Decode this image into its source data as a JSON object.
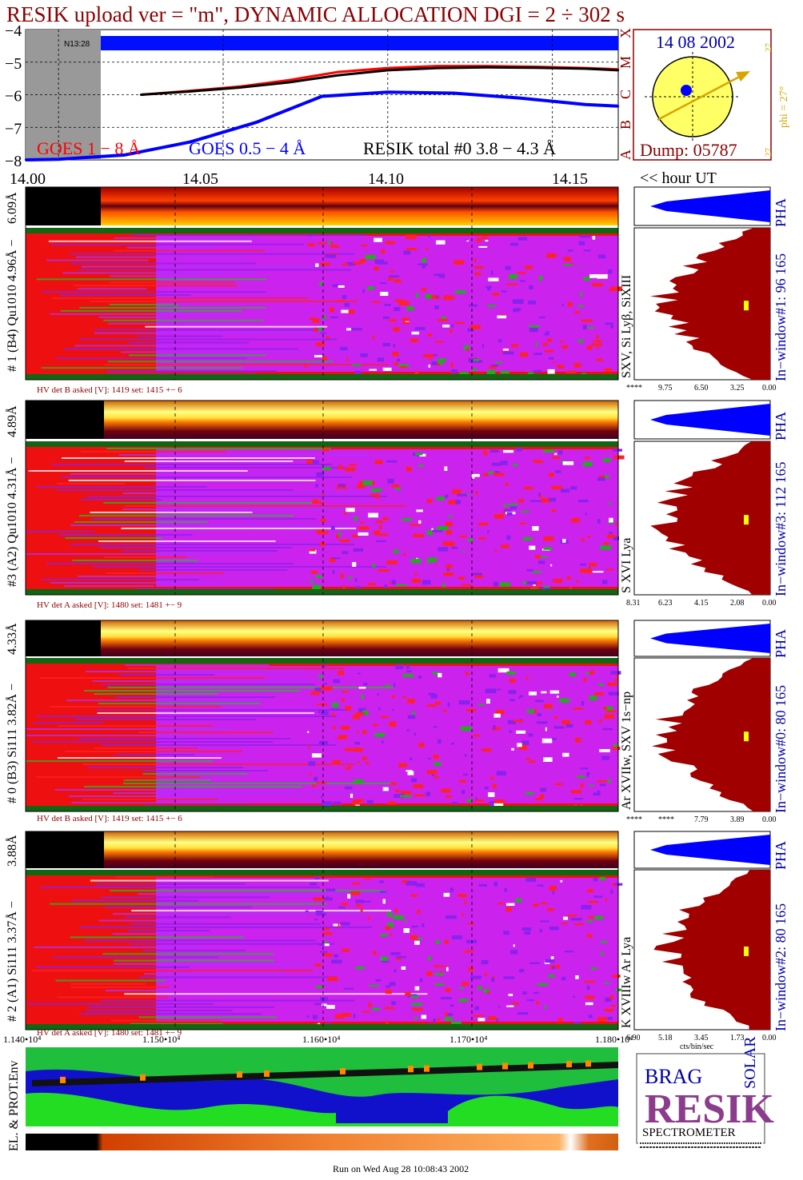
{
  "header": {
    "title": "RESIK upload ver = \"m\", DYNAMIC ALLOCATION  DGI =   2 ÷ 302 s"
  },
  "colors": {
    "title": "#8b0000",
    "goes_1_8": "#ff0000",
    "goes_05_4": "#0000ff",
    "resik_total": "#000000",
    "sun_disk": "#ffff66",
    "sun_vector": "#d9a400",
    "pha_blue": "#0000ff",
    "pha_red": "#a00000",
    "env_blue": "#0000ff",
    "env_green": "#22dd22"
  },
  "lightcurve_panel": {
    "y_ticks": [
      "−4",
      "−5",
      "−6",
      "−7",
      "−8"
    ],
    "goes_classes": [
      "X",
      "M",
      "C",
      "B",
      "A"
    ],
    "nmark_label": "N13:28",
    "legend": {
      "goes_1_8": "GOES 1 − 8 Å",
      "goes_05_4": "GOES 0.5 − 4 Å",
      "resik_total": "RESIK total #0  3.8 − 4.3 Å"
    },
    "time_ticks": [
      "14.00",
      "14.05",
      "14.10",
      "14.15"
    ],
    "time_unit": "<< hour UT"
  },
  "sun_panel": {
    "date": "14 08 2002",
    "phi_label": "phi = 27°",
    "phi_top": "27",
    "phi_bottom": "27",
    "dump": "Dump: 05787"
  },
  "detectors": [
    {
      "id": "det1",
      "strip_label": "6.09Å",
      "main_label": "# 1 (B4) Qu1010 4.96Å −",
      "line_label": "SXV, Si Lyβ, SiXIII",
      "hv": "HV det B asked [V]:  1419 set:  1415 +−   6",
      "window": "In−window#1:   96 165",
      "pha": "PHA",
      "x_ticks": [
        "****",
        "9.75",
        "6.50",
        "3.25",
        "0.00"
      ]
    },
    {
      "id": "det3",
      "strip_label": "4.89Å",
      "main_label": "#3 (A2) Qu1010  4.31Å −",
      "line_label": "S XVI Lya",
      "hv": "HV det A asked [V]:  1480 set:  1481 +−    9",
      "window": "In−window#3:  112 165",
      "pha": "PHA",
      "x_ticks": [
        "8.31",
        "6.23",
        "4.15",
        "2.08",
        "0.00"
      ]
    },
    {
      "id": "det0",
      "strip_label": "4.33Å",
      "main_label": "# 0 (B3) Si111  3.82Å −",
      "line_label": "Ar XVIIw,  SXV 1s−np",
      "hv": "HV det B asked [V]:  1419 set:  1415 +−   6",
      "window": "In−window#0:    80 165",
      "pha": "PHA",
      "x_ticks": [
        "****",
        "****",
        "7.79",
        "3.89",
        "0.00"
      ]
    },
    {
      "id": "det2",
      "strip_label": "3.88Å",
      "main_label": "# 2 (A1) Si111  3.37Å −",
      "line_label": "K XVIIIw  Ar Lya",
      "hv": "HV det A asked [V]:  1480 set:  1481 +−    9",
      "window": "In−window#2:    80 165",
      "pha": "PHA",
      "x_ticks": [
        "6.90",
        "5.18",
        "3.45",
        "1.73",
        "0.00"
      ],
      "x_unit": "cts/bin/sec"
    }
  ],
  "env_panel": {
    "label": "EL. & PROT.Env",
    "x_ticks": [
      "1.140•10⁴",
      "1.150•10⁴",
      "1.160•10⁴",
      "1.170•10⁴",
      "1.180•10⁴"
    ]
  },
  "logo": {
    "letters": "RESIK",
    "corner_words": [
      "BRAG",
      "SOLAR"
    ],
    "caption": "SPECTROMETER"
  },
  "footer": {
    "run_text": "Run on Wed Aug 28 10:08:43 2002"
  },
  "chart_data": {
    "type": "line",
    "title": "RESIK upload ver = \"m\", DYNAMIC ALLOCATION  DGI =   2 ÷ 302 s",
    "xlabel": "<< hour UT",
    "ylabel": "",
    "xlim": [
      13.99,
      14.17
    ],
    "ylim": [
      -8,
      -4
    ],
    "x_ticks": [
      14.0,
      14.05,
      14.1,
      14.15
    ],
    "y_ticks": [
      -4,
      -5,
      -6,
      -7,
      -8
    ],
    "grid": true,
    "series": [
      {
        "name": "GOES 1 − 8 Å",
        "x": [
          14.025,
          14.04,
          14.055,
          14.07,
          14.085,
          14.1,
          14.115,
          14.13,
          14.145,
          14.16,
          14.17
        ],
        "y": [
          -6.0,
          -5.88,
          -5.75,
          -5.55,
          -5.3,
          -5.18,
          -5.12,
          -5.12,
          -5.14,
          -5.18,
          -5.22
        ]
      },
      {
        "name": "GOES 0.5 − 4 Å",
        "x": [
          13.99,
          14.0,
          14.02,
          14.04,
          14.06,
          14.08,
          14.1,
          14.12,
          14.14,
          14.16,
          14.17
        ],
        "y": [
          -8.0,
          -7.98,
          -7.85,
          -7.45,
          -6.85,
          -6.05,
          -5.92,
          -5.95,
          -6.1,
          -6.3,
          -6.35
        ]
      },
      {
        "name": "RESIK total #0  3.8 − 4.3 Å",
        "x": [
          14.025,
          14.04,
          14.055,
          14.07,
          14.085,
          14.1,
          14.115,
          14.13,
          14.145,
          14.16,
          14.17
        ],
        "y": [
          -6.0,
          -5.9,
          -5.78,
          -5.62,
          -5.4,
          -5.25,
          -5.18,
          -5.16,
          -5.17,
          -5.2,
          -5.25
        ]
      }
    ]
  }
}
